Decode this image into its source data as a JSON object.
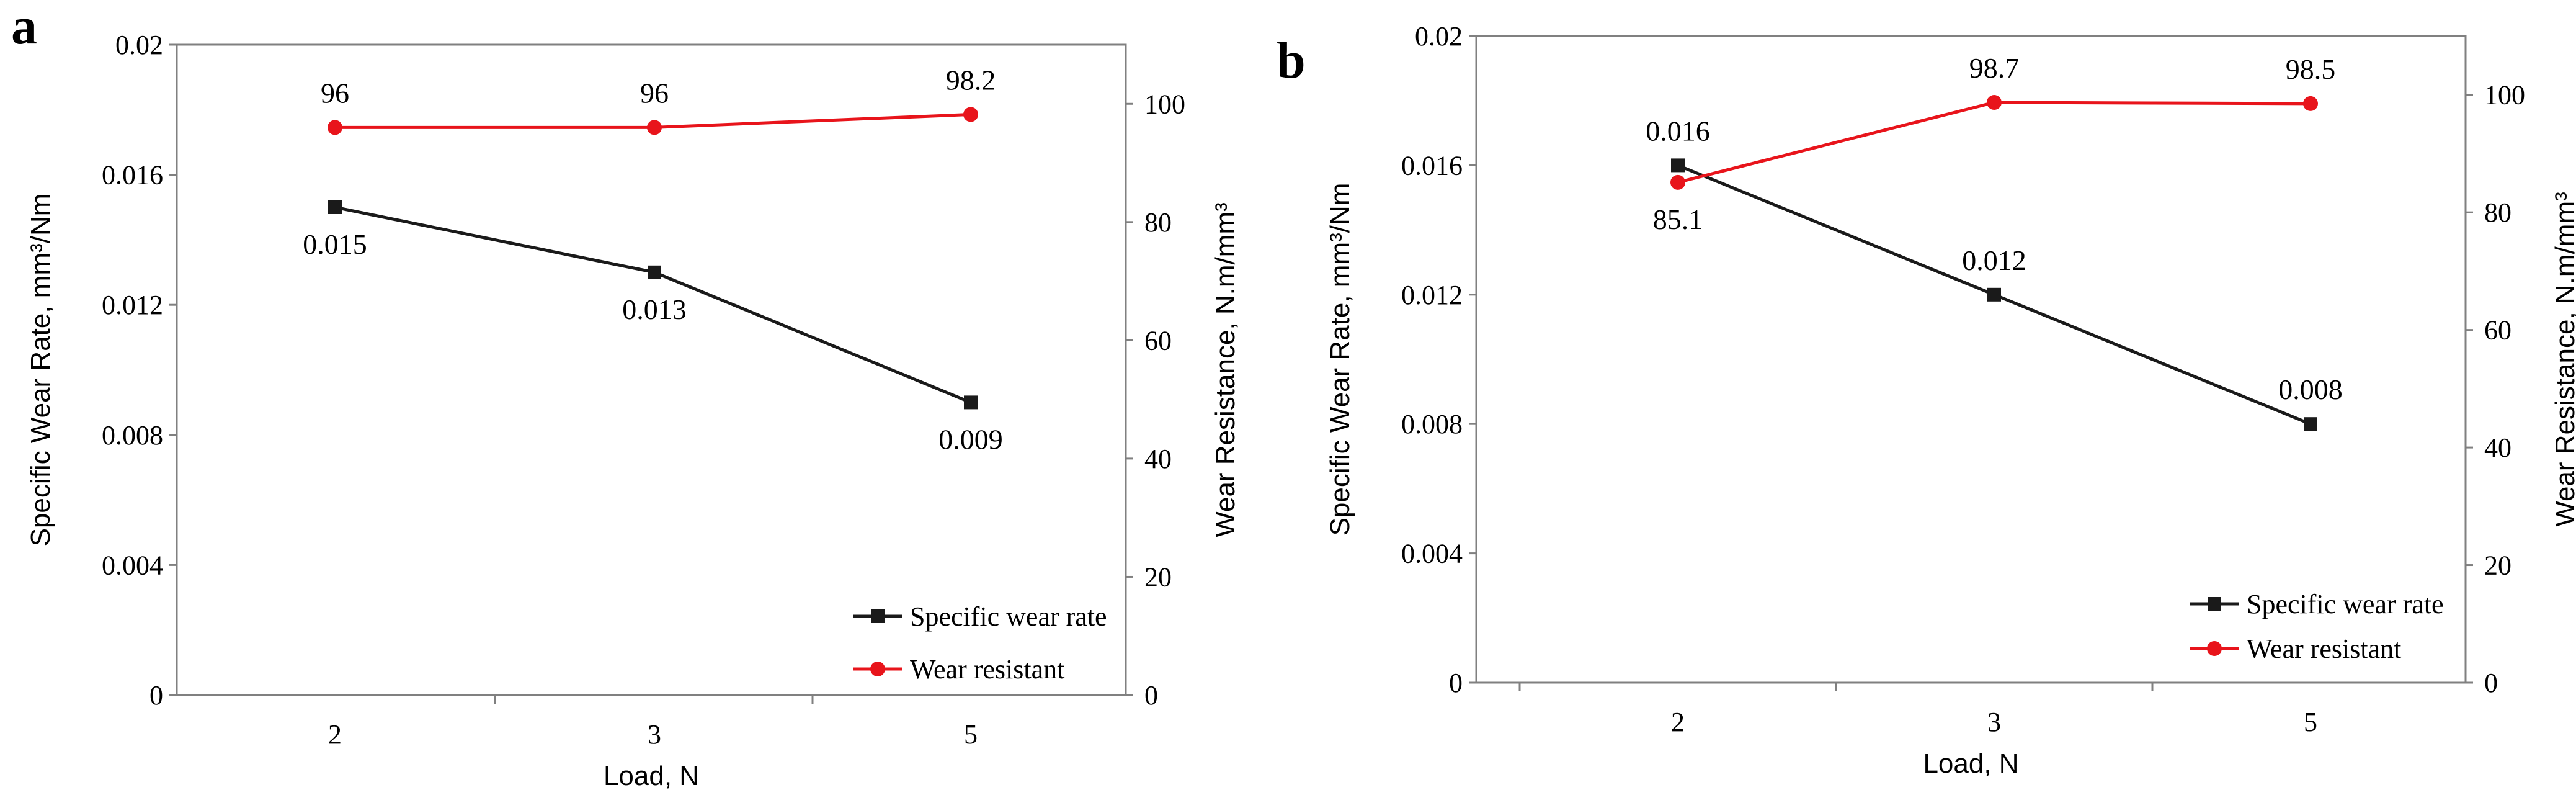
{
  "chart_data": [
    {
      "panel": "a",
      "type": "line",
      "categories": [
        "2",
        "3",
        "5"
      ],
      "xlabel": "Load, N",
      "ylabel": "Specific  Wear Rate,  mm³/Nm",
      "y2label": "Wear Resistance,  N.m/mm³",
      "ylim": [
        0,
        0.02
      ],
      "yticks": [
        "0",
        "0.004",
        "0.008",
        "0.012",
        "0.016",
        "0.02"
      ],
      "y2lim": [
        0,
        110
      ],
      "y2ticks": [
        "0",
        "20",
        "40",
        "60",
        "80",
        "100"
      ],
      "legend_position": "bottom-right",
      "series": [
        {
          "name": "Specific wear rate",
          "axis": "left",
          "color": "#1a1a1a",
          "marker": "square",
          "values": [
            0.015,
            0.013,
            0.009
          ],
          "labels": [
            "0.015",
            "0.013",
            "0.009"
          ],
          "label_side": [
            "below",
            "below",
            "below"
          ]
        },
        {
          "name": "Wear resistant",
          "axis": "right",
          "color": "#e8141b",
          "marker": "circle",
          "values": [
            96,
            96,
            98.2
          ],
          "labels": [
            "96",
            "96",
            "98.2"
          ],
          "label_side": [
            "above",
            "above",
            "above"
          ]
        }
      ]
    },
    {
      "panel": "b",
      "type": "line",
      "categories": [
        "2",
        "3",
        "5"
      ],
      "xlabel": "Load, N",
      "ylabel": "Specific  Wear Rate,  mm³/Nm",
      "y2label": "Wear Resistance,  N.m/mm³",
      "ylim": [
        0,
        0.02
      ],
      "yticks": [
        "0",
        "0.004",
        "0.008",
        "0.012",
        "0.016",
        "0.02"
      ],
      "y2lim": [
        0,
        110
      ],
      "y2ticks": [
        "0",
        "20",
        "40",
        "60",
        "80",
        "100"
      ],
      "legend_position": "bottom-right",
      "series": [
        {
          "name": "Specific wear rate",
          "axis": "left",
          "color": "#1a1a1a",
          "marker": "square",
          "values": [
            0.016,
            0.012,
            0.008
          ],
          "labels": [
            "0.016",
            "0.012",
            "0.008"
          ],
          "label_side": [
            "above",
            "above",
            "above"
          ]
        },
        {
          "name": "Wear resistant",
          "axis": "right",
          "color": "#e8141b",
          "marker": "circle",
          "values": [
            85.1,
            98.7,
            98.5
          ],
          "labels": [
            "85.1",
            "98.7",
            "98.5"
          ],
          "label_side": [
            "below",
            "above",
            "above"
          ]
        }
      ]
    }
  ]
}
